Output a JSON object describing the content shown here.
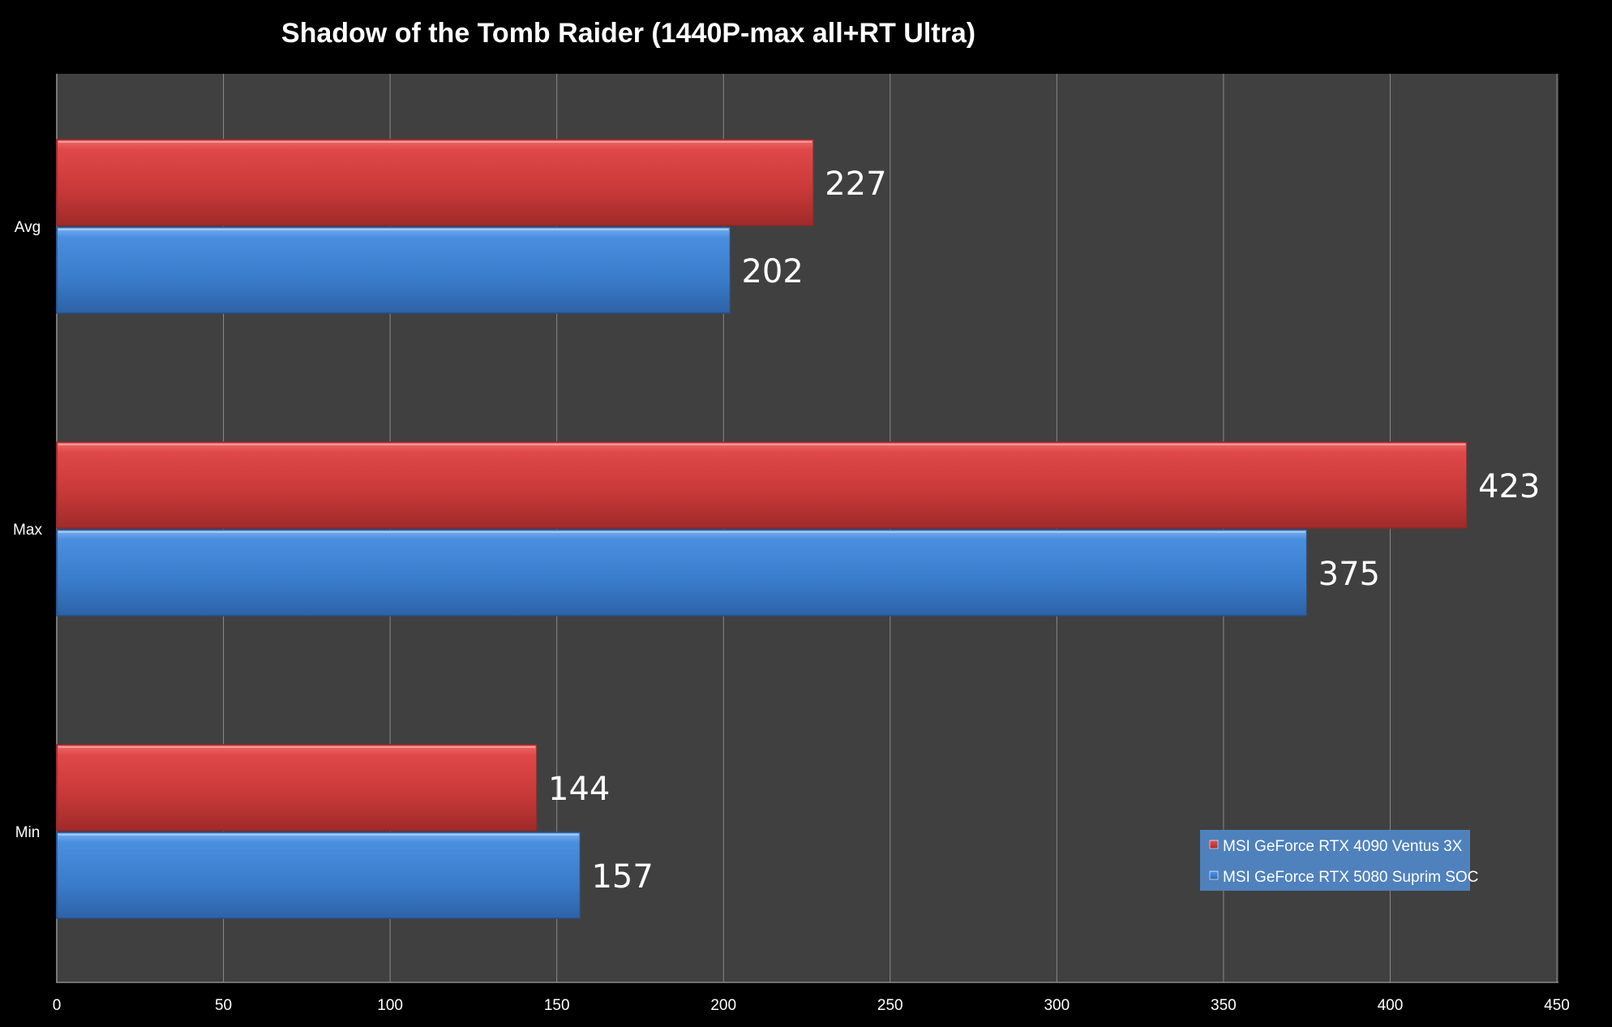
{
  "chart_data": {
    "type": "bar",
    "orientation": "horizontal",
    "title": "Shadow of the Tomb Raider (1440P-max all+RT Ultra)",
    "xlabel": "",
    "ylabel": "",
    "categories": [
      "Avg",
      "Max",
      "Min"
    ],
    "series": [
      {
        "name": "MSI GeForce RTX 4090 Ventus 3X",
        "values": [
          227,
          423,
          144
        ],
        "color": "#cc3b3b"
      },
      {
        "name": "MSI GeForce RTX 5080 Suprim SOC",
        "values": [
          202,
          375,
          157
        ],
        "color": "#3d7fd0"
      }
    ],
    "xlim": [
      0,
      450
    ],
    "x_ticks": [
      0,
      50,
      100,
      150,
      200,
      250,
      300,
      350,
      400,
      450
    ],
    "grid": true,
    "legend_position": "bottom-right",
    "colors": {
      "background": "#000000",
      "plot_area": "#404040",
      "gridline": "#8a8a8a",
      "legend_background": "#4f81bd",
      "text": "#ffffff"
    }
  }
}
